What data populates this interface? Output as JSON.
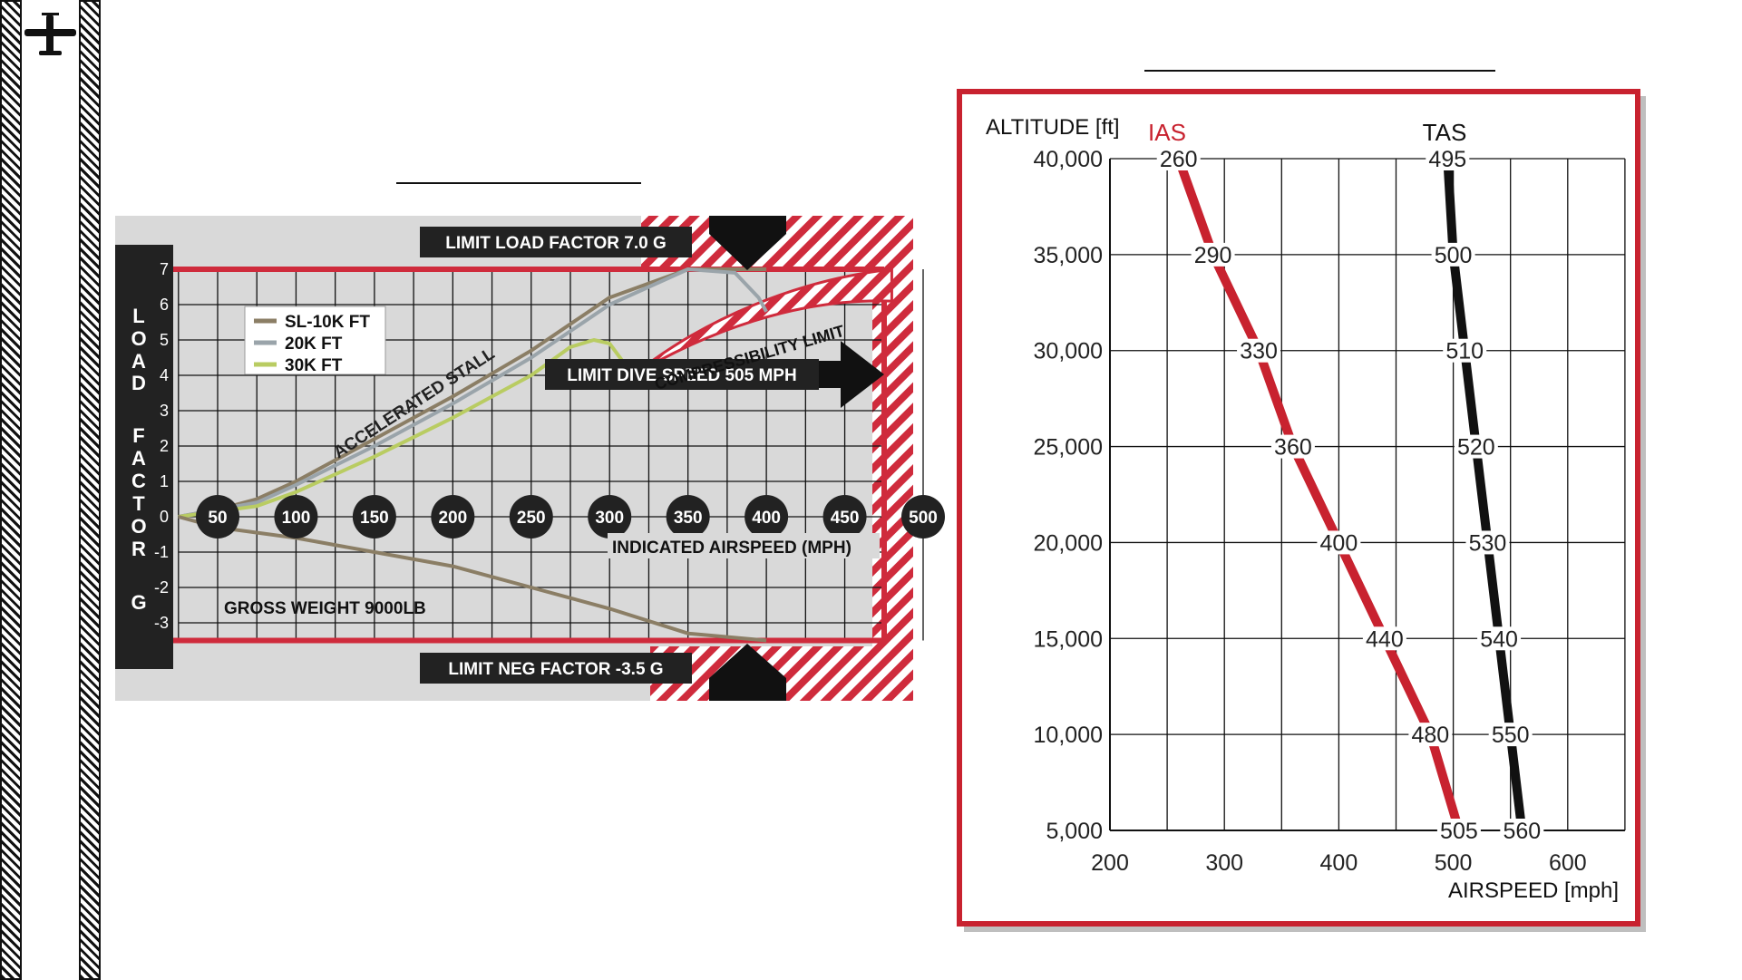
{
  "vn_chart": {
    "load_factor_axis_label": "LOAD FACTOR G",
    "load_factor_letters": [
      "L",
      "O",
      "A",
      "D",
      "F",
      "A",
      "C",
      "T",
      "O",
      "R",
      "G"
    ],
    "y_ticks": [
      "7",
      "6",
      "5",
      "4",
      "3",
      "2",
      "1",
      "0",
      "-1",
      "-2",
      "-3"
    ],
    "speed_markers": [
      "50",
      "100",
      "150",
      "200",
      "250",
      "300",
      "350",
      "400",
      "450",
      "500"
    ],
    "x_axis_label": "INDICATED AIRSPEED (MPH)",
    "legend": [
      {
        "name": "SL-10K FT",
        "color": "#8b7e65"
      },
      {
        "name": "20K FT",
        "color": "#9aa4aa"
      },
      {
        "name": "30K FT",
        "color": "#b9cc62"
      }
    ],
    "limit_load_label": "LIMIT LOAD FACTOR 7.0 G",
    "limit_neg_label": "LIMIT NEG FACTOR -3.5 G",
    "limit_dive_label": "LIMIT DIVE SPEED 505 MPH",
    "accelerated_stall_label": "ACCELERATED STALL",
    "compressibility_label": "COMPRESSIBILITY LIMIT",
    "gross_weight_label": "GROSS WEIGHT 9000LB",
    "accent_color": "#cf2b3c"
  },
  "alt_chart": {
    "y_title": "ALTITUDE [ft]",
    "x_title": "AIRSPEED [mph]",
    "ias_label": "IAS",
    "tas_label": "TAS",
    "frame_color": "#c8222f",
    "ias_color": "#c8222f",
    "tas_color": "#111111",
    "ias_points": [
      {
        "alt": 5000,
        "label": "505"
      },
      {
        "alt": 10000,
        "label": "480"
      },
      {
        "alt": 15000,
        "label": "440"
      },
      {
        "alt": 20000,
        "label": "400"
      },
      {
        "alt": 25000,
        "label": "360"
      },
      {
        "alt": 30000,
        "label": "330"
      },
      {
        "alt": 35000,
        "label": "290"
      },
      {
        "alt": 40000,
        "label": "260"
      }
    ],
    "tas_points": [
      {
        "alt": 5000,
        "label": "560"
      },
      {
        "alt": 10000,
        "label": "550"
      },
      {
        "alt": 15000,
        "label": "540"
      },
      {
        "alt": 20000,
        "label": "530"
      },
      {
        "alt": 25000,
        "label": "520"
      },
      {
        "alt": 30000,
        "label": "510"
      },
      {
        "alt": 35000,
        "label": "500"
      },
      {
        "alt": 40000,
        "label": "495"
      }
    ]
  },
  "chart_data": [
    {
      "type": "line",
      "xlabel": "INDICATED AIRSPEED (MPH)",
      "ylabel": "LOAD FACTOR G",
      "xlim": [
        25,
        505
      ],
      "ylim": [
        -3.5,
        7
      ],
      "x_tick_labels": [
        "50",
        "100",
        "150",
        "200",
        "250",
        "300",
        "350",
        "400",
        "450",
        "500"
      ],
      "y_tick_labels": [
        "7",
        "6",
        "5",
        "4",
        "3",
        "2",
        "1",
        "0",
        "-1",
        "-2",
        "-3"
      ],
      "series": [
        {
          "name": "SL-10K FT",
          "color": "#8b7e65",
          "x": [
            25,
            50,
            75,
            100,
            150,
            200,
            250,
            300,
            350,
            400
          ],
          "y": [
            0,
            0.2,
            0.5,
            1,
            2.2,
            3.4,
            4.7,
            6.2,
            7,
            7
          ]
        },
        {
          "name": "20K FT",
          "color": "#9aa4aa",
          "x": [
            25,
            75,
            100,
            150,
            200,
            250,
            300,
            350,
            380,
            395,
            400
          ],
          "y": [
            0,
            0.4,
            0.9,
            2,
            3.2,
            4.5,
            6,
            7,
            6.9,
            6.2,
            5.8
          ]
        },
        {
          "name": "30K FT",
          "color": "#b9cc62",
          "x": [
            25,
            75,
            100,
            150,
            200,
            250,
            275,
            290,
            300,
            315
          ],
          "y": [
            0,
            0.3,
            0.7,
            1.7,
            2.8,
            4,
            4.8,
            5,
            4.9,
            4
          ]
        },
        {
          "name": "",
          "color": "#8b7e65",
          "x": [
            25,
            50,
            100,
            150,
            200,
            250,
            300,
            350,
            400
          ],
          "y": [
            0,
            -0.3,
            -0.6,
            -1,
            -1.4,
            -2,
            -2.6,
            -3.3,
            -3.5
          ]
        }
      ],
      "annotations": [
        "LIMIT LOAD FACTOR 7.0 G",
        "LIMIT NEG FACTOR -3.5 G",
        "LIMIT DIVE SPEED 505 MPH",
        "ACCELERATED STALL",
        "COMPRESSIBILITY LIMIT",
        "GROSS WEIGHT 9000LB"
      ],
      "grid": true,
      "legend": "top-left"
    },
    {
      "type": "line",
      "xlabel": "AIRSPEED [mph]",
      "ylabel": "ALTITUDE [ft]",
      "xlim": [
        200,
        650
      ],
      "ylim": [
        5000,
        40000
      ],
      "x_ticks": [
        200,
        300,
        400,
        500,
        600
      ],
      "y_ticks": [
        5000,
        10000,
        15000,
        20000,
        25000,
        30000,
        35000,
        40000
      ],
      "y_tick_labels": [
        "5,000",
        "10,000",
        "15,000",
        "20,000",
        "25,000",
        "30,000",
        "35,000",
        "40,000"
      ],
      "series": [
        {
          "name": "IAS",
          "color": "#c8222f",
          "x": [
            505,
            480,
            440,
            400,
            360,
            330,
            290,
            260
          ],
          "y": [
            5000,
            10000,
            15000,
            20000,
            25000,
            30000,
            35000,
            40000
          ]
        },
        {
          "name": "TAS",
          "color": "#111111",
          "x": [
            560,
            550,
            540,
            530,
            520,
            510,
            500,
            495
          ],
          "y": [
            5000,
            10000,
            15000,
            20000,
            25000,
            30000,
            35000,
            40000
          ]
        }
      ],
      "grid": true,
      "legend": "top"
    }
  ]
}
